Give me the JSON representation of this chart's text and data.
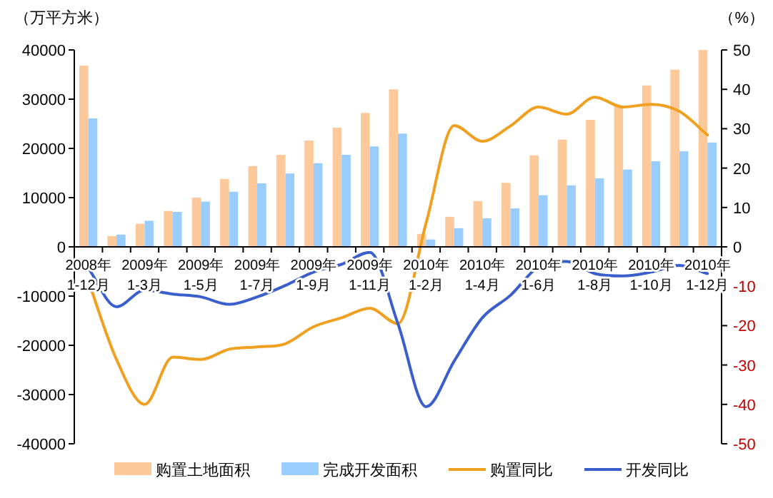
{
  "chart_data": {
    "type": "bar",
    "ylabel": "（万平方米）",
    "y2label": "（%）",
    "categories": [
      "2008年\n1-12月",
      null,
      "2009年\n1-3月",
      null,
      "2009年\n1-5月",
      null,
      "2009年\n1-7月",
      null,
      "2009年\n1-9月",
      null,
      "2009年\n1-11月",
      null,
      "2010年\n1-2月",
      null,
      "2010年\n1-4月",
      null,
      "2010年\n1-6月",
      null,
      "2010年\n1-8月",
      null,
      "2010年\n1-10月",
      null,
      "2010年\n1-12月"
    ],
    "series": [
      {
        "name": "购置土地面积",
        "color": "#fdc99a",
        "values": [
          36800,
          2200,
          4700,
          7300,
          10000,
          13800,
          16400,
          18700,
          21600,
          24200,
          27200,
          32000,
          2600,
          6100,
          9300,
          13000,
          18600,
          21800,
          25800,
          28700,
          32800,
          36000,
          40000
        ]
      },
      {
        "name": "完成开发面积",
        "color": "#99ccff",
        "values": [
          26100,
          2500,
          5300,
          7100,
          9200,
          11200,
          12900,
          14900,
          17000,
          18700,
          20400,
          23000,
          1500,
          3800,
          5800,
          7800,
          10500,
          12500,
          13900,
          15700,
          17400,
          19400,
          21200
        ]
      },
      {
        "name": "购置同比",
        "type": "line",
        "axis": "y2",
        "color": "#f0a020",
        "values": [
          -8.7,
          -28.6,
          -40,
          -28,
          -28.6,
          -26,
          -25.4,
          -24.6,
          -20.3,
          -18,
          -15.6,
          -19.5,
          6,
          30.8,
          26.8,
          30.7,
          35.5,
          33.7,
          38,
          35.5,
          36.2,
          34.4,
          28.4
        ]
      },
      {
        "name": "开发同比",
        "type": "line",
        "axis": "y2",
        "color": "#3a5fcd",
        "values": [
          -5.4,
          -15.2,
          -11,
          -12,
          -12.7,
          -14.6,
          -12.7,
          -9.8,
          -6.4,
          -4.4,
          -1.4,
          -19.5,
          -40.6,
          -29,
          -18,
          -12.3,
          -5,
          -3.7,
          -6.8,
          -7.4,
          -6.4,
          -4.7,
          -6.8
        ]
      }
    ],
    "ylim": [
      -40000,
      40000
    ],
    "yticks": [
      -40000,
      -30000,
      -20000,
      -10000,
      0,
      10000,
      20000,
      30000,
      40000
    ],
    "y2lim": [
      -50,
      50
    ],
    "y2ticks": [
      -50,
      -40,
      -30,
      -20,
      -10,
      0,
      10,
      20,
      30,
      40,
      50
    ],
    "legend": "bottom",
    "grid": false
  }
}
